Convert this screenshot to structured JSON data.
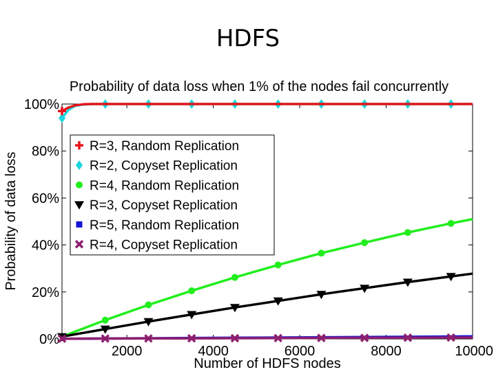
{
  "slide": {
    "title": "HDFS"
  },
  "chart_data": {
    "type": "line",
    "title": "Probability of data loss when 1% of the nodes fail concurrently",
    "xlabel": "Number of HDFS nodes",
    "ylabel": "Probability of data loss",
    "xlim": [
      500,
      10000
    ],
    "ylim": [
      0,
      100
    ],
    "xticks": [
      2000,
      4000,
      6000,
      8000,
      10000
    ],
    "xtick_labels": [
      "2000",
      "4000",
      "6000",
      "8000",
      "10000"
    ],
    "yticks": [
      0,
      20,
      40,
      60,
      80,
      100
    ],
    "ytick_labels": [
      "0%",
      "20%",
      "40%",
      "60%",
      "80%",
      "100%"
    ],
    "grid": false,
    "legend_position": "upper-left",
    "series": [
      {
        "name": "R=3, Random Replication",
        "color": "#e8141a",
        "marker": "plus",
        "x": [
          500,
          650,
          800,
          1000,
          1200,
          1500,
          2000,
          2500,
          3000,
          3500,
          4000,
          4500,
          5000,
          5500,
          6000,
          6500,
          7000,
          7500,
          8000,
          8500,
          9000,
          9500,
          10000
        ],
        "y": [
          97,
          98.5,
          99.4,
          99.9,
          100,
          100,
          100,
          100,
          100,
          100,
          100,
          100,
          100,
          100,
          100,
          100,
          100,
          100,
          100,
          100,
          100,
          100,
          100
        ],
        "marker_x": [
          500
        ]
      },
      {
        "name": "R=2, Copyset Replication",
        "color": "#19d6dc",
        "marker": "diamond",
        "x": [
          500,
          650,
          800,
          1000,
          1200,
          1500,
          2000,
          2500,
          3000,
          3500,
          4000,
          4500,
          5000,
          5500,
          6000,
          6500,
          7000,
          7500,
          8000,
          8500,
          9000,
          9500,
          10000
        ],
        "y": [
          94,
          97.5,
          99.2,
          99.8,
          100,
          100,
          100,
          100,
          100,
          100,
          100,
          100,
          100,
          100,
          100,
          100,
          100,
          100,
          100,
          100,
          100,
          100,
          100
        ],
        "marker_x": [
          500,
          1500,
          2500,
          3500,
          4500,
          5500,
          6500,
          7500,
          8500,
          9500
        ]
      },
      {
        "name": "R=4, Random Replication",
        "color": "#22ee1e",
        "marker": "circle",
        "x": [
          500,
          1500,
          2500,
          3500,
          4500,
          5500,
          6500,
          7500,
          8500,
          9500,
          10000
        ],
        "y": [
          1,
          8,
          14.5,
          20.5,
          26.2,
          31.5,
          36.5,
          41,
          45.3,
          49.2,
          51
        ],
        "marker_x": [
          1500,
          2500,
          3500,
          4500,
          5500,
          6500,
          7500,
          8500,
          9500
        ]
      },
      {
        "name": "R=3, Copyset Replication",
        "color": "#000000",
        "marker": "triangle-down",
        "x": [
          500,
          1500,
          2500,
          3500,
          4500,
          5500,
          6500,
          7500,
          8500,
          9500,
          10000
        ],
        "y": [
          1,
          4.2,
          7.4,
          10.4,
          13.4,
          16.2,
          19,
          21.6,
          24.2,
          26.6,
          27.8
        ],
        "marker_x": [
          500,
          1500,
          2500,
          3500,
          4500,
          5500,
          6500,
          7500,
          8500,
          9500
        ]
      },
      {
        "name": "R=5, Random Replication",
        "color": "#1515d6",
        "marker": "square",
        "x": [
          500,
          2500,
          4500,
          6500,
          8500,
          10000
        ],
        "y": [
          0.1,
          0.3,
          0.5,
          0.7,
          0.9,
          1.1
        ],
        "marker_x": []
      },
      {
        "name": "R=4, Copyset Replication",
        "color": "#8e1f6e",
        "marker": "x",
        "x": [
          500,
          2500,
          4500,
          6500,
          8500,
          10000
        ],
        "y": [
          0.1,
          0.2,
          0.3,
          0.4,
          0.5,
          0.6
        ],
        "marker_x": [
          500,
          1500,
          2500,
          3500,
          4500,
          5500,
          6500,
          7500,
          8500,
          9500
        ]
      }
    ]
  }
}
